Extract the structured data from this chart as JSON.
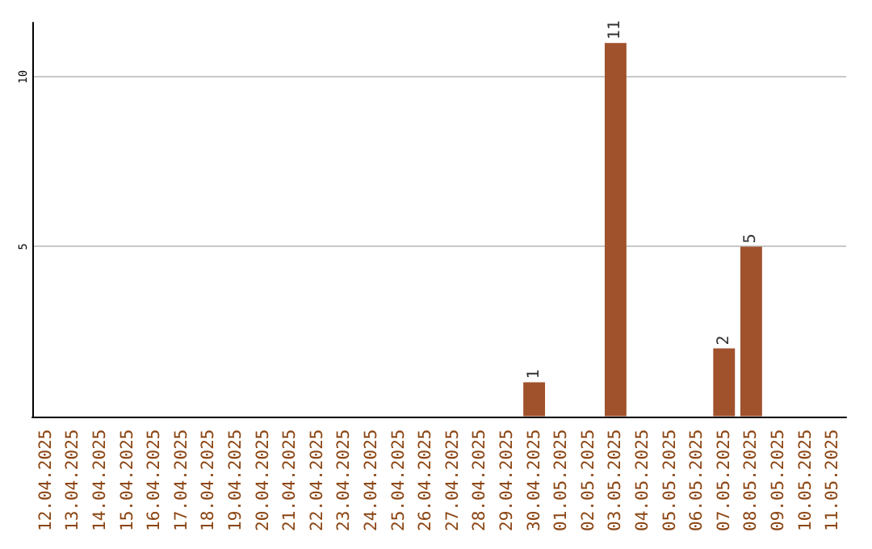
{
  "chart_data": {
    "type": "bar",
    "categories": [
      "12.04.2025",
      "13.04.2025",
      "14.04.2025",
      "15.04.2025",
      "16.04.2025",
      "17.04.2025",
      "18.04.2025",
      "19.04.2025",
      "20.04.2025",
      "21.04.2025",
      "22.04.2025",
      "23.04.2025",
      "24.04.2025",
      "25.04.2025",
      "26.04.2025",
      "27.04.2025",
      "28.04.2025",
      "29.04.2025",
      "30.04.2025",
      "01.05.2025",
      "02.05.2025",
      "03.05.2025",
      "04.05.2025",
      "05.05.2025",
      "06.05.2025",
      "07.05.2025",
      "08.05.2025",
      "09.05.2025",
      "10.05.2025",
      "11.05.2025"
    ],
    "values": [
      0,
      0,
      0,
      0,
      0,
      0,
      0,
      0,
      0,
      0,
      0,
      0,
      0,
      0,
      0,
      0,
      0,
      0,
      1,
      0,
      0,
      11,
      0,
      0,
      0,
      2,
      5,
      0,
      0,
      0
    ],
    "value_labels": [
      null,
      null,
      null,
      null,
      null,
      null,
      null,
      null,
      null,
      null,
      null,
      null,
      null,
      null,
      null,
      null,
      null,
      null,
      "1",
      null,
      null,
      "11",
      null,
      null,
      null,
      "2",
      "5",
      null,
      null,
      null
    ],
    "color": "#a0522d",
    "ylim": [
      0,
      11.6
    ],
    "yticks": [
      {
        "value": 0,
        "label": null
      },
      5,
      10
    ],
    "grid": "y"
  }
}
